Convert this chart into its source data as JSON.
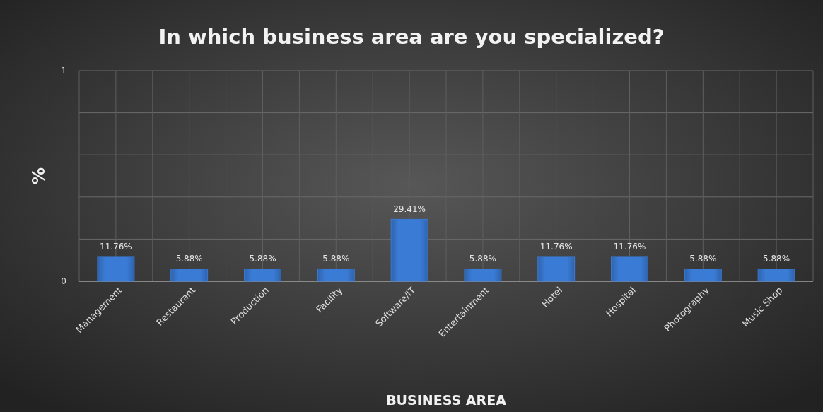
{
  "chart_data": {
    "type": "bar",
    "title": "In which business area are you specialized?",
    "xlabel": "BUSINESS AREA",
    "ylabel": "%",
    "categories": [
      "Management",
      "Restaurant",
      "Production",
      "Facility",
      "Software/IT",
      "Entertainment",
      "Hotel",
      "Hospital",
      "Photography",
      "Music Shop"
    ],
    "values": [
      0.1176,
      0.0588,
      0.0588,
      0.0588,
      0.2941,
      0.0588,
      0.1176,
      0.1176,
      0.0588,
      0.0588
    ],
    "value_labels": [
      "11.76%",
      "5.88%",
      "5.88%",
      "5.88%",
      "29.41%",
      "5.88%",
      "11.76%",
      "11.76%",
      "5.88%",
      "5.88%"
    ],
    "color": "#3a7bd5",
    "ylim": [
      0,
      1
    ],
    "yticks": [
      0,
      {
        "value": 0.2,
        "label": null
      },
      {
        "value": 0.4,
        "label": null
      },
      {
        "value": 0.6,
        "label": null
      },
      {
        "value": 0.8,
        "label": null
      },
      1
    ],
    "grid": true
  }
}
